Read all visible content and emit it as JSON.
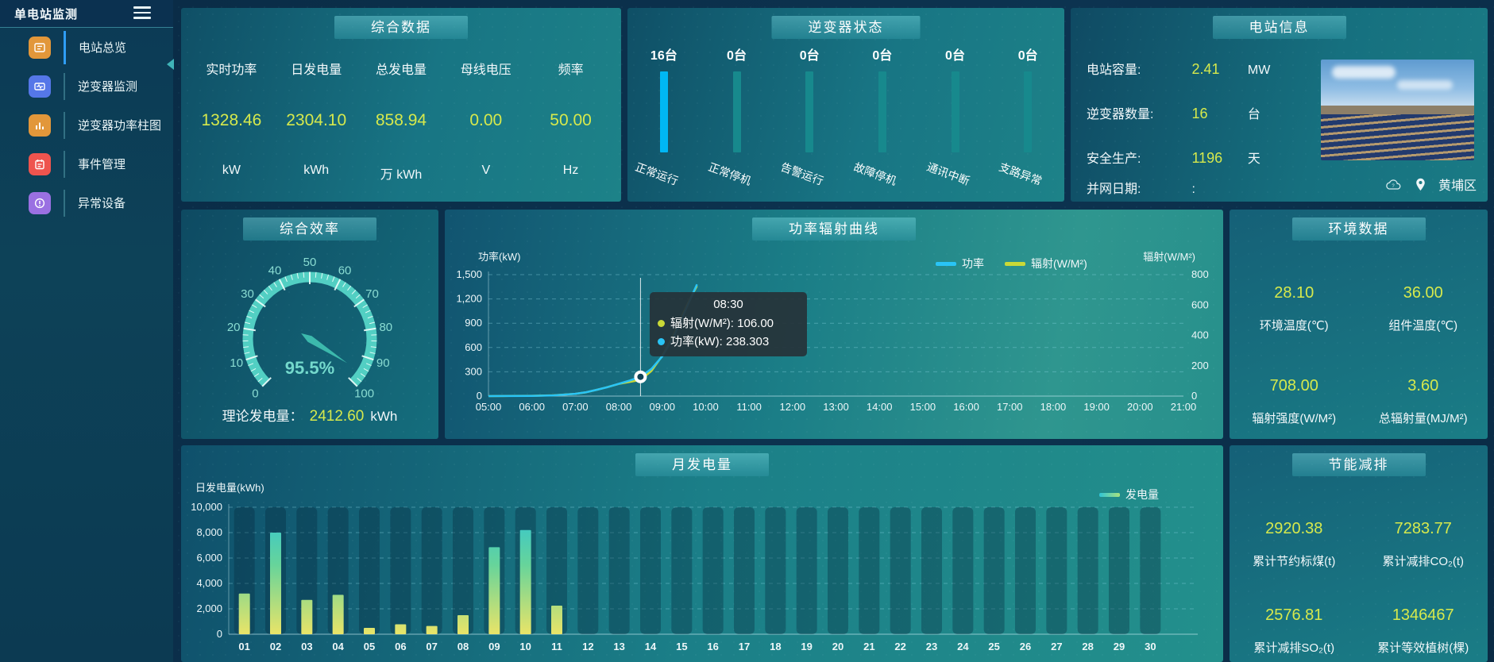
{
  "app": {
    "title": "单电站监测"
  },
  "sidebar": {
    "items": [
      {
        "label": "电站总览",
        "icon": "overview-icon",
        "color": "#e2973a",
        "active": true
      },
      {
        "label": "逆变器监测",
        "icon": "inverter-monitor-icon",
        "color": "#5577e8",
        "active": false
      },
      {
        "label": "逆变器功率柱图",
        "icon": "power-bars-icon",
        "color": "#e2973a",
        "active": false
      },
      {
        "label": "事件管理",
        "icon": "event-icon",
        "color": "#ee544e",
        "active": false
      },
      {
        "label": "异常设备",
        "icon": "abnormal-device-icon",
        "color": "#9a70e2",
        "active": false
      }
    ]
  },
  "summary": {
    "title": "综合数据",
    "metrics": [
      {
        "label": "实时功率",
        "value": "1328.46",
        "unit": "kW"
      },
      {
        "label": "日发电量",
        "value": "2304.10",
        "unit": "kWh"
      },
      {
        "label": "总发电量",
        "value": "858.94",
        "unit": "万 kWh"
      },
      {
        "label": "母线电压",
        "value": "0.00",
        "unit": "V"
      },
      {
        "label": "频率",
        "value": "50.00",
        "unit": "Hz"
      }
    ]
  },
  "inverter_status": {
    "title": "逆变器状态"
  },
  "station_info": {
    "title": "电站信息",
    "rows": [
      {
        "label": "电站容量:",
        "value": "2.41",
        "unit": "MW"
      },
      {
        "label": "逆变器数量:",
        "value": "16",
        "unit": "台"
      },
      {
        "label": "安全生产:",
        "value": "1196",
        "unit": "天"
      },
      {
        "label": "并网日期:",
        "value": ":",
        "unit": ""
      }
    ],
    "location": "黄埔区"
  },
  "efficiency": {
    "title": "综合效率",
    "gauge_display": "95.5%",
    "footer_label": "理论发电量：",
    "footer_value": "2412.60",
    "footer_unit": "kWh"
  },
  "power_curve": {
    "title": "功率辐射曲线",
    "legend": [
      {
        "name": "功率",
        "color": "#29c4f6"
      },
      {
        "name": "辐射(W/M²)",
        "color": "#c9d937"
      }
    ],
    "tooltip": {
      "time": "08:30",
      "rows": [
        {
          "dot": "#c9d937",
          "text": "辐射(W/M²): 106.00"
        },
        {
          "dot": "#29c4f6",
          "text": "功率(kW): 238.303"
        }
      ]
    }
  },
  "environment": {
    "title": "环境数据",
    "metrics": [
      {
        "value": "28.10",
        "label": "环境温度(℃)"
      },
      {
        "value": "36.00",
        "label": "组件温度(℃)"
      },
      {
        "value": "708.00",
        "label": "辐射强度(W/M²)"
      },
      {
        "value": "3.60",
        "label": "总辐射量(MJ/M²)"
      }
    ]
  },
  "monthly": {
    "title": "月发电量",
    "legend": "发电量"
  },
  "savings": {
    "title": "节能减排",
    "metrics": [
      {
        "value": "2920.38",
        "label": "累计节约标煤(t)"
      },
      {
        "value": "7283.77",
        "label": "累计减排CO₂(t)"
      },
      {
        "value": "2576.81",
        "label": "累计减排SO₂(t)"
      },
      {
        "value": "1346467",
        "label": "累计等效植树(棵)"
      }
    ]
  },
  "chart_data": [
    {
      "id": "power_radiation_curve",
      "type": "line",
      "title": "功率辐射曲线",
      "x_range": [
        5,
        21
      ],
      "x_tick_labels": [
        "05:00",
        "06:00",
        "07:00",
        "08:00",
        "09:00",
        "10:00",
        "11:00",
        "12:00",
        "13:00",
        "14:00",
        "15:00",
        "16:00",
        "17:00",
        "18:00",
        "19:00",
        "20:00",
        "21:00"
      ],
      "y_left": {
        "name": "功率(kW)",
        "min": 0,
        "max": 1500,
        "tick_step": 300
      },
      "y_right": {
        "name": "辐射(W/M²)",
        "min": 0,
        "max": 800,
        "tick_step": 200
      },
      "grid": "dashed",
      "legend_position": "top-right",
      "series": [
        {
          "name": "功率",
          "axis": "left",
          "color": "#29c4f6",
          "points": [
            [
              5,
              0
            ],
            [
              5.5,
              1
            ],
            [
              6,
              3
            ],
            [
              6.5,
              9
            ],
            [
              7,
              28
            ],
            [
              7.25,
              48
            ],
            [
              7.5,
              78
            ],
            [
              7.75,
              112
            ],
            [
              8,
              152
            ],
            [
              8.25,
              192
            ],
            [
              8.5,
              238.303
            ],
            [
              8.75,
              335
            ],
            [
              9,
              490
            ],
            [
              9.25,
              720
            ],
            [
              9.5,
              1020
            ],
            [
              9.65,
              1200
            ],
            [
              9.8,
              1380
            ]
          ]
        },
        {
          "name": "辐射(W/M²)",
          "axis": "right",
          "color": "#c9d937",
          "points": [
            [
              5,
              0
            ],
            [
              5.5,
              1
            ],
            [
              6,
              2
            ],
            [
              6.5,
              5
            ],
            [
              7,
              15
            ],
            [
              7.25,
              25
            ],
            [
              7.5,
              42
            ],
            [
              7.75,
              60
            ],
            [
              8,
              80
            ],
            [
              8.25,
              93
            ],
            [
              8.5,
              106
            ],
            [
              8.75,
              165
            ],
            [
              9,
              265
            ],
            [
              9.25,
              395
            ],
            [
              9.5,
              555
            ],
            [
              9.65,
              645
            ],
            [
              9.8,
              725
            ]
          ]
        }
      ],
      "highlight": {
        "x": 8.5,
        "time": "08:30",
        "power": 238.303,
        "radiation": 106.0
      }
    },
    {
      "id": "monthly_generation",
      "type": "bar",
      "title": "月发电量",
      "ylabel": "日发电量(kWh)",
      "ylim": [
        0,
        10000
      ],
      "tick_step": 2000,
      "series_name": "发电量",
      "bar_gradient": [
        "#e9e468",
        "#66d49b",
        "#2fc4d6"
      ],
      "categories": [
        "01",
        "02",
        "03",
        "04",
        "05",
        "06",
        "07",
        "08",
        "09",
        "10",
        "11",
        "12",
        "13",
        "14",
        "15",
        "16",
        "17",
        "18",
        "19",
        "20",
        "21",
        "22",
        "23",
        "24",
        "25",
        "26",
        "27",
        "28",
        "29",
        "30"
      ],
      "values": [
        3200,
        8000,
        2700,
        3100,
        500,
        780,
        650,
        1500,
        6850,
        8200,
        2250,
        0,
        0,
        0,
        0,
        0,
        0,
        0,
        0,
        0,
        0,
        0,
        0,
        0,
        0,
        0,
        0,
        0,
        0,
        0
      ]
    },
    {
      "id": "inverter_status",
      "type": "bar",
      "title": "逆变器状态",
      "categories": [
        "正常运行",
        "正常停机",
        "告警运行",
        "故障停机",
        "通讯中断",
        "支路异常"
      ],
      "values": [
        16,
        0,
        0,
        0,
        0,
        0
      ],
      "unit": "台",
      "highlight_color": "#00b7f4",
      "bar_color": "#17898d"
    },
    {
      "id": "efficiency_gauge",
      "type": "gauge",
      "value": 95.5,
      "min": 0,
      "max": 100,
      "label": "95.5%",
      "band_color": "#52cfc3"
    }
  ]
}
